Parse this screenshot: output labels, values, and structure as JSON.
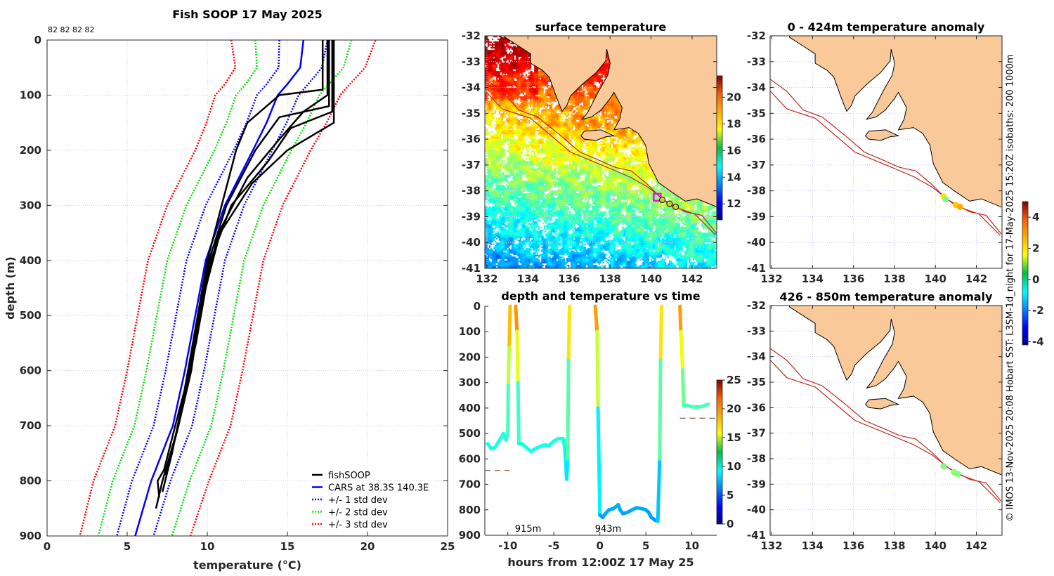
{
  "credit": "© IMOS 13-Nov-2025 20:08 Hobart SST: L3SM-1d_night for 17-May-2025 15:20Z isobaths: 200  1000m",
  "colors": {
    "land": "#f9c99a",
    "coast": "#000000",
    "isobath": "#c0281e",
    "cars": "#0000ff",
    "std1": "#0000ff",
    "std2": "#00e000",
    "std3": "#ff0000",
    "fishsoop": "#000000",
    "track_marker": "#ff00ff"
  },
  "chart_data": [
    {
      "type": "line",
      "title": "Fish SOOP 17 May 2025",
      "count_label": "82 82 82 82",
      "xlabel": "temperature (°C)",
      "ylabel": "depth (m)",
      "xlim": [
        0,
        25
      ],
      "ylim": [
        0,
        900
      ],
      "y_reversed": true,
      "grid": true,
      "xticks": [
        "0",
        "5",
        "10",
        "15",
        "20",
        "25"
      ],
      "yticks": [
        "0",
        "100",
        "200",
        "300",
        "400",
        "500",
        "600",
        "700",
        "800",
        "900"
      ],
      "legend_position": "bottom-right",
      "legend": [
        "fishSOOP",
        "CARS at 38.3S 140.3E",
        "+/- 1 std dev",
        "+/- 2 std dev",
        "+/- 3 std dev"
      ],
      "cars": {
        "depth": [
          0,
          50,
          80,
          100,
          150,
          200,
          300,
          400,
          500,
          600,
          700,
          800,
          900
        ],
        "temp": [
          16.0,
          15.8,
          15.0,
          14.4,
          13.7,
          12.85,
          11.1,
          9.9,
          9.25,
          8.6,
          7.85,
          6.5,
          5.5
        ]
      },
      "std": {
        "depth": [
          0,
          50,
          80,
          100,
          150,
          200,
          300,
          400,
          500,
          600,
          700,
          800,
          900
        ],
        "value": [
          1.5,
          1.35,
          1.3,
          1.3,
          1.25,
          1.2,
          1.2,
          1.2,
          1.2,
          1.2,
          1.2,
          1.2,
          1.15
        ]
      },
      "profiles": [
        [
          [
            0,
            17.2
          ],
          [
            90,
            17.2
          ],
          [
            100,
            14.5
          ],
          [
            150,
            12.5
          ],
          [
            200,
            11.8
          ],
          [
            300,
            10.9
          ],
          [
            400,
            10.0
          ],
          [
            500,
            9.4
          ],
          [
            600,
            8.8
          ],
          [
            680,
            8.3
          ]
        ],
        [
          [
            0,
            17.6
          ],
          [
            120,
            17.6
          ],
          [
            140,
            14.5
          ],
          [
            200,
            13.0
          ],
          [
            300,
            11.2
          ],
          [
            400,
            10.1
          ],
          [
            500,
            9.5
          ],
          [
            600,
            9.0
          ],
          [
            700,
            8.2
          ],
          [
            800,
            7.2
          ],
          [
            850,
            6.8
          ]
        ],
        [
          [
            0,
            17.8
          ],
          [
            130,
            17.8
          ],
          [
            160,
            15.2
          ],
          [
            220,
            13.8
          ],
          [
            300,
            11.5
          ],
          [
            400,
            10.2
          ],
          [
            500,
            9.6
          ],
          [
            600,
            8.9
          ],
          [
            700,
            8.0
          ],
          [
            780,
            7.3
          ],
          [
            800,
            6.9
          ],
          [
            830,
            7.0
          ]
        ],
        [
          [
            0,
            17.9
          ],
          [
            150,
            17.9
          ],
          [
            200,
            15.0
          ],
          [
            260,
            12.8
          ],
          [
            350,
            10.8
          ],
          [
            450,
            9.9
          ],
          [
            550,
            9.3
          ],
          [
            650,
            8.5
          ],
          [
            750,
            7.8
          ],
          [
            820,
            7.2
          ]
        ],
        [
          [
            0,
            17.5
          ],
          [
            100,
            17.5
          ],
          [
            130,
            16.0
          ],
          [
            180,
            14.5
          ],
          [
            250,
            12.5
          ],
          [
            350,
            10.7
          ],
          [
            500,
            9.5
          ],
          [
            600,
            8.8
          ],
          [
            700,
            8.2
          ],
          [
            790,
            7.4
          ]
        ]
      ]
    },
    {
      "type": "heatmap",
      "title": "surface temperature",
      "xlim": [
        131.9,
        143.2
      ],
      "ylim": [
        -41,
        -32
      ],
      "xticks": [
        "132",
        "134",
        "136",
        "138",
        "140",
        "142"
      ],
      "yticks": [
        "-32",
        "-33",
        "-34",
        "-35",
        "-36",
        "-37",
        "-38",
        "-39",
        "-40",
        "-41"
      ],
      "colorbar": {
        "range": [
          10.8,
          21.6
        ],
        "ticks": [
          "20",
          "18",
          "16",
          "14",
          "12"
        ],
        "tick_values": [
          20,
          18,
          16,
          14,
          12
        ]
      },
      "track": [
        [
          140.3,
          -38.25
        ],
        [
          140.55,
          -38.35
        ],
        [
          140.9,
          -38.5
        ],
        [
          141.2,
          -38.62
        ]
      ]
    },
    {
      "type": "line",
      "title": "depth and temperature vs time",
      "xlabel": "hours from 12:00Z 17 May 25",
      "xlim": [
        -12.5,
        12.7
      ],
      "ylim": [
        0,
        900
      ],
      "y_reversed": true,
      "xticks": [
        {
          "v": -10,
          "t": "-10"
        },
        {
          "v": -5,
          "t": "-5"
        },
        {
          "v": 0,
          "t": "0"
        },
        {
          "v": 5,
          "t": "5"
        },
        {
          "v": 10,
          "t": "10"
        }
      ],
      "yticks": [
        "0",
        "100",
        "200",
        "300",
        "400",
        "500",
        "600",
        "700",
        "800",
        "900"
      ],
      "colorbar": {
        "range": [
          0,
          25
        ],
        "ticks": [
          "25",
          "20",
          "15",
          "10",
          "5",
          "0"
        ],
        "tick_values": [
          25,
          20,
          15,
          10,
          5,
          0
        ]
      },
      "annotations": [
        {
          "text": "915m",
          "hour": -7.8
        },
        {
          "text": "943m",
          "hour": 0.9
        }
      ],
      "bottom_depth_marks": [
        {
          "from": -12.5,
          "to": -9.8,
          "depth": 645
        },
        {
          "from": 8.7,
          "to": 12.7,
          "depth": 440
        }
      ],
      "segments": [
        [
          [
            -12.2,
            540,
            10
          ],
          [
            -11.8,
            560,
            9.8
          ],
          [
            -11.4,
            555,
            9.9
          ],
          [
            -10.8,
            520,
            10.2
          ],
          [
            -10.5,
            500,
            10.3
          ],
          [
            -10.2,
            525,
            10.1
          ],
          [
            -10.0,
            500,
            10.3
          ],
          [
            -9.95,
            300,
            12
          ],
          [
            -9.85,
            150,
            16
          ],
          [
            -9.75,
            0,
            18.5
          ]
        ],
        [
          [
            -9.15,
            0,
            18.5
          ],
          [
            -9.0,
            100,
            18
          ],
          [
            -8.9,
            300,
            12
          ],
          [
            -8.8,
            540,
            10
          ],
          [
            -8.5,
            540,
            10
          ],
          [
            -8,
            555,
            9.9
          ],
          [
            -7.5,
            570,
            9.8
          ],
          [
            -7,
            560,
            9.8
          ],
          [
            -6.5,
            550,
            9.9
          ],
          [
            -6,
            545,
            9.9
          ],
          [
            -5.5,
            547,
            9.9
          ],
          [
            -5,
            530,
            10
          ],
          [
            -4.5,
            520,
            10.1
          ],
          [
            -4,
            520,
            10.1
          ],
          [
            -3.8,
            560,
            9.7
          ],
          [
            -3.6,
            680,
            8.6
          ],
          [
            -3.5,
            600,
            9
          ],
          [
            -3.4,
            200,
            14
          ],
          [
            -3.3,
            0,
            18.5
          ]
        ],
        [
          [
            -0.5,
            0,
            18.5
          ],
          [
            -0.3,
            100,
            17.5
          ],
          [
            -0.2,
            400,
            11
          ],
          [
            0,
            820,
            7.2
          ],
          [
            0.3,
            830,
            7
          ],
          [
            0.6,
            815,
            7.2
          ],
          [
            1,
            800,
            7.3
          ],
          [
            1.5,
            795,
            7.3
          ],
          [
            2,
            780,
            7.5
          ],
          [
            2.2,
            800,
            7.3
          ],
          [
            2.5,
            815,
            7.2
          ],
          [
            3,
            810,
            7.2
          ],
          [
            3.5,
            800,
            7.3
          ],
          [
            4,
            792,
            7.4
          ],
          [
            4.5,
            795,
            7.3
          ],
          [
            5,
            800,
            7.3
          ],
          [
            5.3,
            810,
            7.2
          ],
          [
            5.6,
            830,
            7
          ],
          [
            6,
            840,
            6.9
          ],
          [
            6.3,
            845,
            6.8
          ],
          [
            6.5,
            600,
            9.3
          ],
          [
            6.6,
            200,
            14
          ],
          [
            6.7,
            0,
            18.5
          ]
        ],
        [
          [
            8.7,
            0,
            18.5
          ],
          [
            8.8,
            100,
            17.5
          ],
          [
            9.0,
            250,
            13
          ],
          [
            9.1,
            390,
            11.2
          ],
          [
            9.5,
            390,
            11.2
          ],
          [
            10,
            395,
            11.1
          ],
          [
            10.5,
            395,
            11.1
          ],
          [
            11,
            395,
            11.1
          ],
          [
            11.4,
            390,
            11.2
          ],
          [
            11.8,
            385,
            11.3
          ]
        ]
      ]
    },
    {
      "type": "scatter",
      "title": "0 - 424m temperature anomaly",
      "xlim": [
        131.93,
        143.25
      ],
      "ylim": [
        -41,
        -32
      ],
      "xticks": [
        "132",
        "134",
        "136",
        "138",
        "140",
        "142"
      ],
      "yticks": [
        "-32",
        "-33",
        "-34",
        "-35",
        "-36",
        "-37",
        "-38",
        "-39",
        "-40",
        "-41"
      ],
      "colorbar": {
        "range": [
          -4.2,
          5
        ],
        "ticks": [
          "4",
          "2",
          "0",
          "-2",
          "-4"
        ],
        "tick_values": [
          4,
          2,
          0,
          -2,
          -4
        ]
      },
      "points": [
        [
          140.4,
          -38.22,
          1.8
        ],
        [
          140.5,
          -38.33,
          0.3
        ],
        [
          141.0,
          -38.55,
          2.0
        ],
        [
          141.2,
          -38.62,
          2.3
        ]
      ]
    },
    {
      "type": "scatter",
      "title": "426 - 850m temperature anomaly",
      "xlim": [
        131.93,
        143.25
      ],
      "ylim": [
        -41,
        -32
      ],
      "xticks": [
        "132",
        "134",
        "136",
        "138",
        "140",
        "142"
      ],
      "yticks": [
        "-32",
        "-33",
        "-34",
        "-35",
        "-36",
        "-37",
        "-38",
        "-39",
        "-40",
        "-41"
      ],
      "points": [
        [
          140.4,
          -38.3,
          0.4
        ],
        [
          140.9,
          -38.52,
          0.5
        ],
        [
          141.1,
          -38.6,
          0.4
        ]
      ]
    }
  ]
}
